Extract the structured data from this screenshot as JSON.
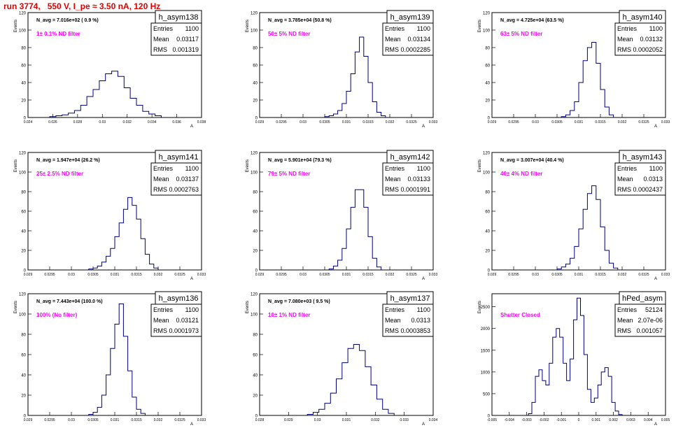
{
  "header": {
    "title": "run 3774,   550 V, I_pe ≈ 3.50 nA, 120 Hz"
  },
  "stats_labels": {
    "entries": "Entries",
    "mean": "Mean",
    "rms": "RMS"
  },
  "colors": {
    "hist": "#00007f",
    "filter_text": "#ff00ff",
    "title_text": "#e00000"
  },
  "chart_data": [
    {
      "type": "histogram",
      "title": "h_asym138",
      "navg": "N_avg = 7.016e+02 ( 0.9 %)",
      "filter": "1± 0.1% ND filter",
      "stats": {
        "entries": "1100",
        "mean": "0.03117",
        "rms": "0.001319"
      },
      "ylabel": "Events",
      "xlabel": "A",
      "xlim": [
        0.024,
        0.038
      ],
      "ylim": [
        0,
        120
      ],
      "yticks": [
        "0",
        "20",
        "40",
        "60",
        "80",
        "100",
        "120"
      ],
      "xticks": [
        "0.024",
        "0.026",
        "0.028",
        "0.03",
        "0.032",
        "0.034",
        "0.036",
        "0.038"
      ],
      "x": [
        0.026,
        0.0265,
        0.027,
        0.0275,
        0.028,
        0.0285,
        0.029,
        0.0295,
        0.03,
        0.0305,
        0.031,
        0.0315,
        0.032,
        0.0325,
        0.033,
        0.0335,
        0.034,
        0.0345
      ],
      "y": [
        1,
        2,
        3,
        5,
        8,
        14,
        24,
        32,
        42,
        50,
        53,
        47,
        34,
        22,
        14,
        7,
        4,
        2
      ]
    },
    {
      "type": "histogram",
      "title": "h_asym139",
      "navg": "N_avg = 3.785e+04 (50.8 %)",
      "filter": "50± 5% ND filter",
      "stats": {
        "entries": "1100",
        "mean": "0.03134",
        "rms": "0.0002285"
      },
      "ylabel": "Events",
      "xlabel": "A",
      "xlim": [
        0.029,
        0.033
      ],
      "ylim": [
        0,
        120
      ],
      "yticks": [
        "0",
        "20",
        "40",
        "60",
        "80",
        "100",
        "120"
      ],
      "xticks": [
        "0.029",
        "0.0295",
        "0.03",
        "0.0305",
        "0.031",
        "0.0315",
        "0.032",
        "0.0325",
        "0.033"
      ],
      "x": [
        0.03055,
        0.03065,
        0.03075,
        0.03085,
        0.03095,
        0.03105,
        0.03115,
        0.03125,
        0.03135,
        0.03145,
        0.03155,
        0.03165,
        0.03175,
        0.03185
      ],
      "y": [
        1,
        2,
        4,
        8,
        16,
        30,
        50,
        75,
        92,
        70,
        40,
        18,
        6,
        2
      ]
    },
    {
      "type": "histogram",
      "title": "h_asym140",
      "navg": "N_avg = 4.725e+04 (63.5 %)",
      "filter": "63± 5% ND filter",
      "stats": {
        "entries": "1100",
        "mean": "0.03132",
        "rms": "0.0002052"
      },
      "ylabel": "Events",
      "xlabel": "A",
      "xlim": [
        0.029,
        0.033
      ],
      "ylim": [
        0,
        120
      ],
      "yticks": [
        "0",
        "20",
        "40",
        "60",
        "80",
        "100",
        "120"
      ],
      "xticks": [
        "0.029",
        "0.0295",
        "0.03",
        "0.0305",
        "0.031",
        "0.0315",
        "0.032",
        "0.0325",
        "0.033"
      ],
      "x": [
        0.03065,
        0.03075,
        0.03085,
        0.03095,
        0.03105,
        0.03115,
        0.03125,
        0.03135,
        0.03145,
        0.03155,
        0.03165,
        0.03175
      ],
      "y": [
        1,
        3,
        8,
        18,
        40,
        65,
        80,
        86,
        62,
        32,
        12,
        3
      ]
    },
    {
      "type": "histogram",
      "title": "h_asym141",
      "navg": "N_avg = 1.947e+04 (26.2 %)",
      "filter": "25± 2.5% ND filter",
      "stats": {
        "entries": "1100",
        "mean": "0.03137",
        "rms": "0.0002763"
      },
      "ylabel": "Events",
      "xlabel": "A",
      "xlim": [
        0.029,
        0.033
      ],
      "ylim": [
        0,
        120
      ],
      "yticks": [
        "0",
        "20",
        "40",
        "60",
        "80",
        "100",
        "120"
      ],
      "xticks": [
        "0.029",
        "0.0295",
        "0.03",
        "0.0305",
        "0.031",
        "0.0315",
        "0.032",
        "0.0325",
        "0.033"
      ],
      "x": [
        0.03045,
        0.03055,
        0.03065,
        0.03075,
        0.03085,
        0.03095,
        0.03105,
        0.03115,
        0.03125,
        0.03135,
        0.03145,
        0.03155,
        0.03165,
        0.03175,
        0.03185,
        0.03195
      ],
      "y": [
        1,
        2,
        4,
        8,
        14,
        22,
        34,
        48,
        62,
        74,
        66,
        52,
        32,
        16,
        6,
        2
      ]
    },
    {
      "type": "histogram",
      "title": "h_asym142",
      "navg": "N_avg = 5.901e+04 (79.3 %)",
      "filter": "79± 5% ND filter",
      "stats": {
        "entries": "1100",
        "mean": "0.03133",
        "rms": "0.0001991"
      },
      "ylabel": "Events",
      "xlabel": "A",
      "xlim": [
        0.029,
        0.033
      ],
      "ylim": [
        0,
        120
      ],
      "yticks": [
        "0",
        "20",
        "40",
        "60",
        "80",
        "100",
        "120"
      ],
      "xticks": [
        "0.029",
        "0.0295",
        "0.03",
        "0.0305",
        "0.031",
        "0.0315",
        "0.032",
        "0.0325",
        "0.033"
      ],
      "x": [
        0.03065,
        0.03075,
        0.03085,
        0.03095,
        0.03105,
        0.03115,
        0.03125,
        0.03135,
        0.03145,
        0.03155,
        0.03165,
        0.03175
      ],
      "y": [
        1,
        4,
        10,
        22,
        42,
        64,
        82,
        82,
        64,
        34,
        12,
        3
      ]
    },
    {
      "type": "histogram",
      "title": "h_asym143",
      "navg": "N_avg = 3.007e+04 (40.4 %)",
      "filter": "40± 4% ND filter",
      "stats": {
        "entries": "1100",
        "mean": "0.0313",
        "rms": "0.0002437"
      },
      "ylabel": "Events",
      "xlabel": "A",
      "xlim": [
        0.029,
        0.033
      ],
      "ylim": [
        0,
        120
      ],
      "yticks": [
        "0",
        "20",
        "40",
        "60",
        "80",
        "100",
        "120"
      ],
      "xticks": [
        "0.029",
        "0.0295",
        "0.03",
        "0.0305",
        "0.031",
        "0.0315",
        "0.032",
        "0.0325",
        "0.033"
      ],
      "x": [
        0.03055,
        0.03065,
        0.03075,
        0.03085,
        0.03095,
        0.03105,
        0.03115,
        0.03125,
        0.03135,
        0.03145,
        0.03155,
        0.03165,
        0.03175,
        0.03185
      ],
      "y": [
        1,
        3,
        6,
        12,
        24,
        42,
        62,
        78,
        86,
        72,
        44,
        20,
        7,
        2
      ]
    },
    {
      "type": "histogram",
      "title": "h_asym136",
      "navg": "N_avg = 7.443e+04 (100.0 %)",
      "filter": "100% (No filter)",
      "stats": {
        "entries": "1100",
        "mean": "0.03121",
        "rms": "0.0001973"
      },
      "ylabel": "Events",
      "xlabel": "A",
      "xlim": [
        0.029,
        0.033
      ],
      "ylim": [
        0,
        120
      ],
      "yticks": [
        "0",
        "20",
        "40",
        "60",
        "80",
        "100",
        "120"
      ],
      "xticks": [
        "0.029",
        "0.0295",
        "0.03",
        "0.0305",
        "0.031",
        "0.0315",
        "0.032",
        "0.0325",
        "0.033"
      ],
      "x": [
        0.03045,
        0.03055,
        0.03065,
        0.03075,
        0.03085,
        0.03095,
        0.03105,
        0.03115,
        0.03125,
        0.03135,
        0.03145,
        0.03155,
        0.03165
      ],
      "y": [
        1,
        3,
        8,
        20,
        40,
        66,
        90,
        110,
        78,
        44,
        18,
        6,
        2
      ]
    },
    {
      "type": "histogram",
      "title": "h_asym137",
      "navg": "N_avg = 7.080e+03 ( 9.5 %)",
      "filter": "10± 1% ND filter",
      "stats": {
        "entries": "1100",
        "mean": "0.0313",
        "rms": "0.0003853"
      },
      "ylabel": "Events",
      "xlabel": "A",
      "xlim": [
        0.028,
        0.034
      ],
      "ylim": [
        0,
        120
      ],
      "yticks": [
        "0",
        "20",
        "40",
        "60",
        "80",
        "100",
        "120"
      ],
      "xticks": [
        "0.028",
        "0.029",
        "0.03",
        "0.031",
        "0.032",
        "0.033",
        "0.034"
      ],
      "x": [
        0.02975,
        0.02995,
        0.03015,
        0.03035,
        0.03055,
        0.03075,
        0.03095,
        0.03115,
        0.03135,
        0.03155,
        0.03175,
        0.03195,
        0.03215,
        0.03235,
        0.03255
      ],
      "y": [
        1,
        3,
        6,
        12,
        22,
        36,
        52,
        66,
        70,
        64,
        48,
        30,
        16,
        6,
        2
      ]
    },
    {
      "type": "histogram",
      "title": "hPed_asym",
      "navg": "",
      "filter": "Shutter Closed",
      "stats": {
        "entries": "52124",
        "mean": "2.07e-06",
        "rms": "0.001057"
      },
      "ylabel": "Events",
      "xlabel": "A",
      "xlim": [
        -0.005,
        0.005
      ],
      "ylim": [
        0,
        2800
      ],
      "yticks": [
        "0",
        "500",
        "1000",
        "1500",
        "2000",
        "2500"
      ],
      "xticks": [
        "-0.005",
        "-0.004",
        "-0.003",
        "-0.002",
        "-0.001",
        "0",
        "0.001",
        "0.002",
        "0.003",
        "0.004",
        "0.005"
      ],
      "x": [
        -0.0028,
        -0.0026,
        -0.0024,
        -0.0022,
        -0.002,
        -0.0018,
        -0.0016,
        -0.0014,
        -0.0012,
        -0.001,
        -0.0008,
        -0.0006,
        -0.0004,
        -0.0002,
        0.0,
        0.0002,
        0.0004,
        0.0006,
        0.0008,
        0.001,
        0.0012,
        0.0014,
        0.0016,
        0.0018,
        0.002,
        0.0022,
        0.0024
      ],
      "y": [
        40,
        300,
        900,
        1050,
        800,
        700,
        1200,
        1800,
        2000,
        1800,
        1200,
        800,
        1300,
        2200,
        2700,
        2300,
        1400,
        600,
        300,
        400,
        700,
        1000,
        1100,
        900,
        300,
        100,
        20
      ]
    }
  ]
}
